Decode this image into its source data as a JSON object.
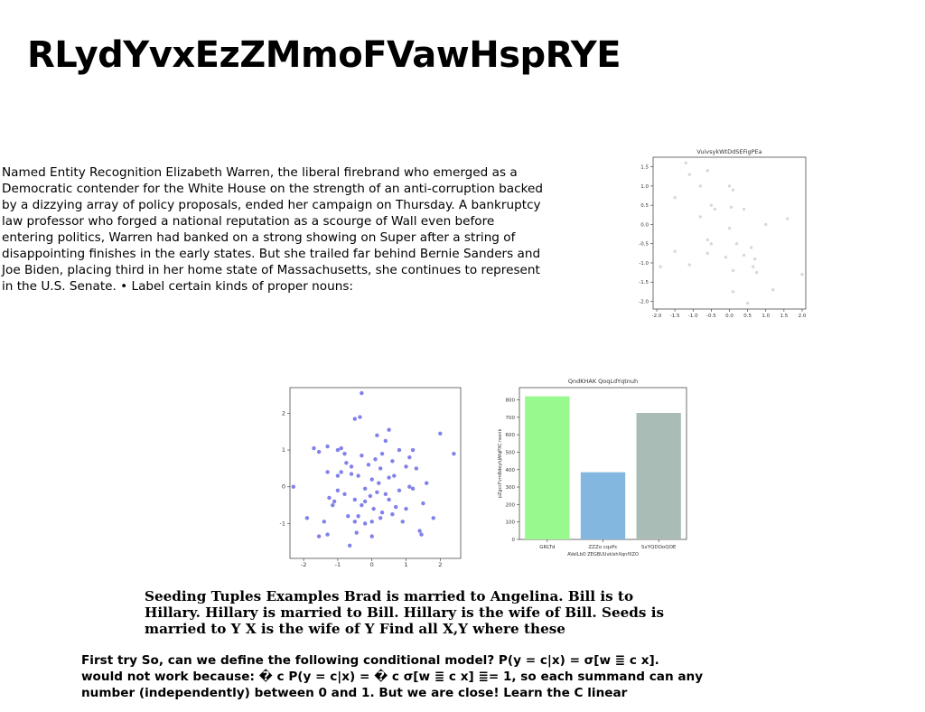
{
  "title": "RLydYvxEzZMmoFVawHspRYE",
  "paragraph": "Named Entity Recognition Elizabeth Warren, the liberal firebrand who emerged as a Democratic contender for the White House on the strength of an anti-corruption backed by a dizzying array of policy proposals, ended her campaign on Thursday. A bankruptcy law professor who forged a national reputation as a scourge of Wall even before entering politics, Warren had banked on a strong showing on Super after a string of disappointing finishes in the early states. But she trailed far behind Bernie Sanders and Joe Biden, placing third in her home state of Massachusetts, she continues to represent in the U.S. Senate. • Label certain kinds of proper nouns:",
  "seeding_text": "Seeding Tuples Examples Brad is married to Angelina. Bill is to Hillary. Hillary is married to Bill. Hillary is the wife of Bill. Seeds is married to Y X is the wife of Y Find all X,Y where these",
  "first_try_text": "First try So, can we define the following conditional model? P(y = c|x) = σ[w ≣ c x]. would not work because: � c P(y = c|x) = � c σ[w ≣ c x] ≣= 1, so each summand can any number (independently) between 0 and 1. But we are close! Learn the C linear",
  "chart_data": [
    {
      "type": "scatter",
      "title": "VuivsykWtDdSEFigPEa",
      "xlim": [
        -2.1,
        2.1
      ],
      "ylim": [
        -2.2,
        1.75
      ],
      "xticks": [
        "-2.0",
        "-1.5",
        "-1.0",
        "-0.5",
        "0.0",
        "0.5",
        "1.0",
        "1.5",
        "2.0"
      ],
      "yticks": [
        "1.5",
        "1.0",
        "0.5",
        "0.0",
        "-0.5",
        "-1.0",
        "-1.5",
        "-2.0"
      ],
      "color": "#cfd6d6",
      "points": [
        [
          -1.2,
          1.6
        ],
        [
          -0.6,
          1.4
        ],
        [
          -1.1,
          1.3
        ],
        [
          -0.8,
          1.0
        ],
        [
          0.0,
          1.0
        ],
        [
          0.1,
          0.9
        ],
        [
          -1.5,
          0.7
        ],
        [
          -0.5,
          0.5
        ],
        [
          0.4,
          0.4
        ],
        [
          -0.4,
          0.4
        ],
        [
          -0.8,
          0.2
        ],
        [
          0.05,
          0.45
        ],
        [
          1.0,
          0.0
        ],
        [
          1.6,
          0.15
        ],
        [
          0.0,
          -0.1
        ],
        [
          -0.6,
          -0.4
        ],
        [
          -0.5,
          -0.5
        ],
        [
          0.2,
          -0.5
        ],
        [
          0.6,
          -0.6
        ],
        [
          -1.5,
          -0.7
        ],
        [
          -0.6,
          -0.75
        ],
        [
          0.4,
          -0.8
        ],
        [
          -0.1,
          -0.85
        ],
        [
          0.7,
          -0.9
        ],
        [
          -1.1,
          -1.05
        ],
        [
          -1.9,
          -1.1
        ],
        [
          0.65,
          -1.1
        ],
        [
          0.1,
          -1.2
        ],
        [
          0.75,
          -1.25
        ],
        [
          2.0,
          -1.3
        ],
        [
          1.2,
          -1.7
        ],
        [
          0.1,
          -1.75
        ],
        [
          0.5,
          -2.05
        ]
      ]
    },
    {
      "type": "scatter",
      "title": "",
      "xlim": [
        -2.4,
        2.6
      ],
      "ylim": [
        -1.95,
        2.7
      ],
      "xticks": [
        "-2",
        "-1",
        "0",
        "1",
        "2"
      ],
      "yticks": [
        "2",
        "1",
        "0",
        "-1"
      ],
      "color": "#6b6be6",
      "points": [
        [
          -0.3,
          2.55
        ],
        [
          -0.5,
          1.85
        ],
        [
          -0.35,
          1.9
        ],
        [
          0.5,
          1.55
        ],
        [
          0.4,
          1.25
        ],
        [
          0.15,
          1.4
        ],
        [
          -1.7,
          1.05
        ],
        [
          -1.55,
          0.95
        ],
        [
          -1.3,
          1.1
        ],
        [
          -0.9,
          1.05
        ],
        [
          -1.0,
          1.0
        ],
        [
          -0.8,
          0.9
        ],
        [
          1.2,
          1.0
        ],
        [
          0.8,
          1.0
        ],
        [
          2.0,
          1.45
        ],
        [
          2.4,
          0.9
        ],
        [
          1.1,
          0.8
        ],
        [
          0.6,
          0.7
        ],
        [
          0.3,
          0.9
        ],
        [
          0.1,
          0.75
        ],
        [
          -0.3,
          0.85
        ],
        [
          -0.1,
          0.6
        ],
        [
          -0.6,
          0.55
        ],
        [
          -1.3,
          0.4
        ],
        [
          -1.0,
          0.3
        ],
        [
          -0.6,
          0.35
        ],
        [
          -0.4,
          0.3
        ],
        [
          0.0,
          0.2
        ],
        [
          0.25,
          0.5
        ],
        [
          0.5,
          0.25
        ],
        [
          0.65,
          0.3
        ],
        [
          1.0,
          0.55
        ],
        [
          1.3,
          0.5
        ],
        [
          1.6,
          0.1
        ],
        [
          1.1,
          0.0
        ],
        [
          0.2,
          0.1
        ],
        [
          -0.2,
          -0.05
        ],
        [
          -0.05,
          -0.25
        ],
        [
          0.15,
          -0.15
        ],
        [
          0.4,
          -0.2
        ],
        [
          0.8,
          -0.1
        ],
        [
          1.2,
          -0.05
        ],
        [
          -1.0,
          -0.1
        ],
        [
          -1.25,
          -0.3
        ],
        [
          -1.1,
          -0.4
        ],
        [
          -1.15,
          -0.5
        ],
        [
          -0.8,
          -0.2
        ],
        [
          -0.5,
          -0.35
        ],
        [
          -0.3,
          -0.5
        ],
        [
          -0.2,
          -0.4
        ],
        [
          0.05,
          -0.6
        ],
        [
          0.3,
          -0.7
        ],
        [
          0.7,
          -0.55
        ],
        [
          1.0,
          -0.6
        ],
        [
          1.5,
          -0.45
        ],
        [
          -2.3,
          0.0
        ],
        [
          -1.9,
          -0.85
        ],
        [
          -1.4,
          -0.95
        ],
        [
          -1.3,
          -1.3
        ],
        [
          -1.55,
          -1.35
        ],
        [
          -0.7,
          -0.8
        ],
        [
          -0.5,
          -0.95
        ],
        [
          -0.4,
          -0.8
        ],
        [
          -0.2,
          -1.0
        ],
        [
          0.0,
          -0.95
        ],
        [
          0.25,
          -0.85
        ],
        [
          0.6,
          -0.75
        ],
        [
          0.9,
          -0.95
        ],
        [
          1.4,
          -1.2
        ],
        [
          1.45,
          -1.3
        ],
        [
          1.8,
          -0.85
        ],
        [
          0.0,
          -1.35
        ],
        [
          -0.65,
          -1.6
        ],
        [
          -0.45,
          -1.25
        ],
        [
          0.5,
          -0.35
        ],
        [
          -0.9,
          0.4
        ],
        [
          -0.75,
          0.65
        ]
      ]
    },
    {
      "type": "bar",
      "title": "QndKHAK QoqLdYqtnuh",
      "xlabel": "AVeILbO ZEGBUUvkIshXqnfXZO",
      "ylabel": "pZgccFvmBdeyhJAfqPXC reenk",
      "categories": [
        "GRLTd",
        "ZZZo cqzPc",
        "SxYQDOoQOE"
      ],
      "values": [
        820,
        385,
        725
      ],
      "colors": [
        "#98f98e",
        "#84b7e0",
        "#a9bdb6"
      ],
      "ylim": [
        0,
        870
      ],
      "yticks": [
        0,
        100,
        200,
        300,
        400,
        500,
        600,
        700,
        800
      ]
    }
  ]
}
